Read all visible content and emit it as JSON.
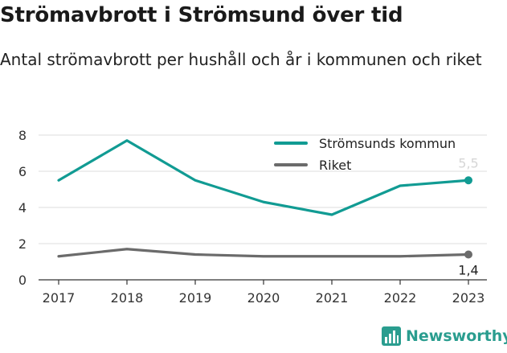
{
  "header": {
    "title": "Strömavbrott i Strömsund över tid",
    "subtitle": "Antal strömavbrott per hushåll och år i kommunen och riket"
  },
  "brand": {
    "name": "Newsworthy",
    "icon": "bar-chart-logo-icon"
  },
  "colors": {
    "accent": "#119b93",
    "secondary": "#6b6b6b"
  },
  "chart_data": {
    "type": "line",
    "title": "Strömavbrott i Strömsund över tid",
    "subtitle": "Antal strömavbrott per hushåll och år i kommunen och riket",
    "x": [
      "2017",
      "2018",
      "2019",
      "2020",
      "2021",
      "2022",
      "2023"
    ],
    "series": [
      {
        "name": "Strömsunds kommun",
        "color": "#119b93",
        "values": [
          5.5,
          7.7,
          5.5,
          4.3,
          3.6,
          5.2,
          5.5
        ]
      },
      {
        "name": "Riket",
        "color": "#6b6b6b",
        "values": [
          1.3,
          1.7,
          1.4,
          1.3,
          1.3,
          1.3,
          1.4
        ]
      }
    ],
    "ylim": [
      0,
      8
    ],
    "yticks": [
      "0",
      "2",
      "4",
      "6",
      "8"
    ],
    "grid": true,
    "legend": "top-right",
    "end_labels": [
      "5,5",
      "1,4"
    ]
  }
}
